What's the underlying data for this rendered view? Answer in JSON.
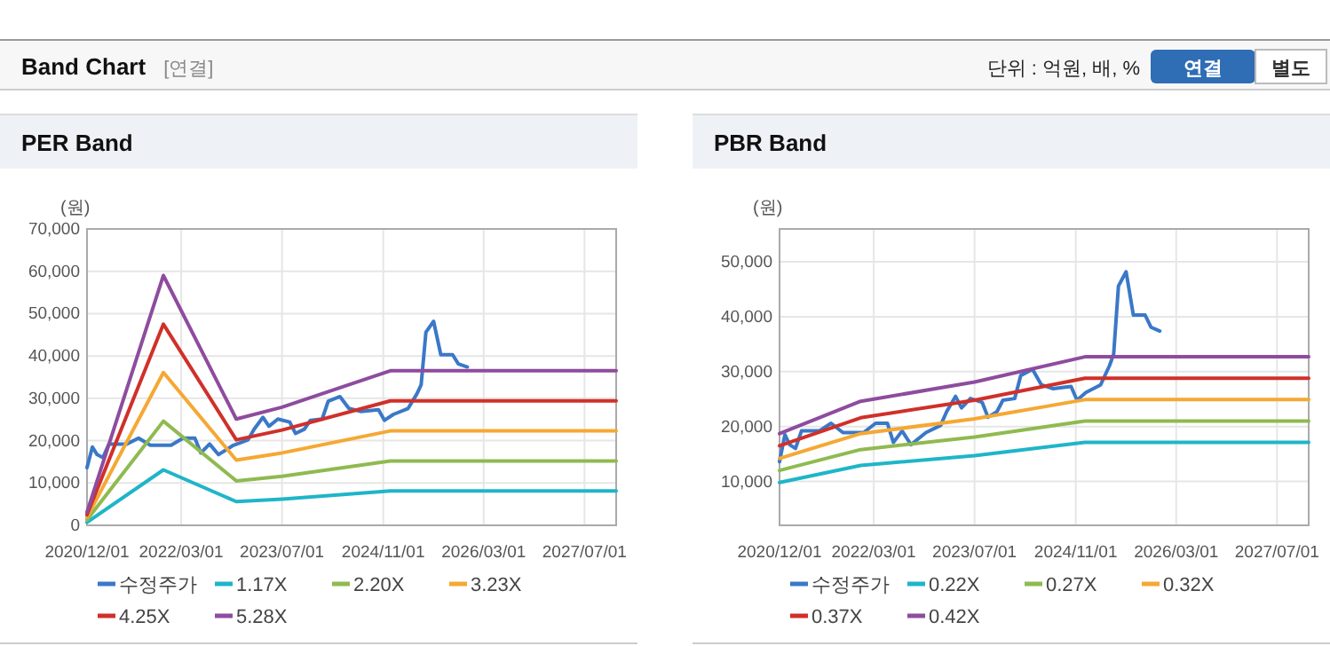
{
  "chart_data": [
    {
      "type": "other",
      "title": "Band Chart",
      "subtitle": "[연결]",
      "annotations": [
        "단위 : 억원, 배, %",
        "연결",
        "별도"
      ]
    },
    {
      "type": "line",
      "title": "PER Band",
      "ylabel": "(원)",
      "grid": true,
      "legend": "bottom",
      "xlim": [
        "2020-12-01",
        "2027-12-01"
      ],
      "xticks": [
        {
          "value": "2020-12-01",
          "label": "2020/12/01"
        },
        {
          "value": "2022-03-01",
          "label": "2022/03/01"
        },
        {
          "value": "2023-07-01",
          "label": "2023/07/01"
        },
        {
          "value": "2024-11-01",
          "label": "2024/11/01"
        },
        {
          "value": "2026-03-01",
          "label": "2026/03/01"
        },
        {
          "value": "2027-07-01",
          "label": "2027/07/01"
        }
      ],
      "ylim": [
        0,
        70000
      ],
      "yticks": [
        {
          "value": 0,
          "label": "0"
        },
        {
          "value": 10000,
          "label": "10,000"
        },
        {
          "value": 20000,
          "label": "20,000"
        },
        {
          "value": 30000,
          "label": "30,000"
        },
        {
          "value": 40000,
          "label": "40,000"
        },
        {
          "value": 50000,
          "label": "50,000"
        },
        {
          "value": 60000,
          "label": "60,000"
        },
        {
          "value": 70000,
          "label": "70,000"
        }
      ],
      "series": [
        {
          "name": "수정주가",
          "color": "#3a78c8",
          "x": [
            "2020-12-01",
            "2020-12-27",
            "2021-01-19",
            "2021-02-16",
            "2021-03-17",
            "2021-06-11",
            "2021-08-07",
            "2021-10-03",
            "2022-01-11",
            "2022-03-10",
            "2022-05-06",
            "2022-06-04",
            "2022-07-16",
            "2022-08-28",
            "2022-11-08",
            "2023-01-18",
            "2023-02-16",
            "2023-03-31",
            "2023-04-29",
            "2023-06-11",
            "2023-08-07",
            "2023-09-04",
            "2023-10-17",
            "2023-11-15",
            "2024-01-11",
            "2024-02-09",
            "2024-04-06",
            "2024-05-19",
            "2024-07-15",
            "2024-10-09",
            "2024-11-07",
            "2024-12-20",
            "2025-03-01",
            "2025-04-13",
            "2025-05-03",
            "2025-05-26",
            "2025-07-02",
            "2025-08-06",
            "2025-10-02",
            "2025-10-30",
            "2025-12-12"
          ],
          "values": [
            13600,
            18500,
            16700,
            16000,
            19200,
            19200,
            20600,
            18900,
            18900,
            20600,
            20600,
            17100,
            19200,
            16700,
            18900,
            20200,
            22700,
            25500,
            23400,
            25100,
            24400,
            21700,
            22700,
            24800,
            25100,
            29300,
            30400,
            27600,
            26900,
            27300,
            24800,
            26200,
            27600,
            31100,
            33200,
            45600,
            48200,
            40300,
            40300,
            38100,
            37400
          ]
        },
        {
          "name": "1.17X",
          "color": "#1fb5c8",
          "x": [
            "2020-12-01",
            "2021-12-05",
            "2022-11-22",
            "2023-07-01",
            "2024-12-05",
            "2027-12-01"
          ],
          "values": [
            700,
            13100,
            5600,
            6200,
            8100,
            8100
          ]
        },
        {
          "name": "2.20X",
          "color": "#8fba50",
          "x": [
            "2020-12-01",
            "2021-12-05",
            "2022-11-22",
            "2023-07-01",
            "2024-12-05",
            "2027-12-01"
          ],
          "values": [
            1300,
            24600,
            10500,
            11600,
            15200,
            15200
          ]
        },
        {
          "name": "3.23X",
          "color": "#f5a833",
          "x": [
            "2020-12-01",
            "2021-12-05",
            "2022-11-22",
            "2023-07-01",
            "2024-12-05",
            "2027-12-01"
          ],
          "values": [
            1900,
            36100,
            15400,
            17100,
            22300,
            22300
          ]
        },
        {
          "name": "4.25X",
          "color": "#d0302a",
          "x": [
            "2020-12-01",
            "2021-12-05",
            "2022-11-22",
            "2023-07-01",
            "2024-12-05",
            "2027-12-01"
          ],
          "values": [
            2500,
            47500,
            20200,
            22500,
            29400,
            29400
          ]
        },
        {
          "name": "5.28X",
          "color": "#8e4c9e",
          "x": [
            "2020-12-01",
            "2021-12-05",
            "2022-11-22",
            "2023-07-01",
            "2024-12-05",
            "2027-12-01"
          ],
          "values": [
            3100,
            59000,
            25100,
            27900,
            36500,
            36500
          ]
        }
      ]
    },
    {
      "type": "line",
      "title": "PBR Band",
      "ylabel": "(원)",
      "grid": true,
      "legend": "bottom",
      "xlim": [
        "2020-12-01",
        "2027-12-01"
      ],
      "xticks": [
        {
          "value": "2020-12-01",
          "label": "2020/12/01"
        },
        {
          "value": "2022-03-01",
          "label": "2022/03/01"
        },
        {
          "value": "2023-07-01",
          "label": "2023/07/01"
        },
        {
          "value": "2024-11-01",
          "label": "2024/11/01"
        },
        {
          "value": "2026-03-01",
          "label": "2026/03/01"
        },
        {
          "value": "2027-07-01",
          "label": "2027/07/01"
        }
      ],
      "ylim": [
        2000,
        56000
      ],
      "yticks": [
        {
          "value": 10000,
          "label": "10,000"
        },
        {
          "value": 20000,
          "label": "20,000"
        },
        {
          "value": 30000,
          "label": "30,000"
        },
        {
          "value": 40000,
          "label": "40,000"
        },
        {
          "value": 50000,
          "label": "50,000"
        }
      ],
      "series": [
        {
          "name": "수정주가",
          "color": "#3a78c8",
          "x": [
            "2020-12-01",
            "2020-12-27",
            "2021-01-19",
            "2021-02-16",
            "2021-03-17",
            "2021-06-11",
            "2021-08-07",
            "2021-10-03",
            "2022-01-11",
            "2022-03-10",
            "2022-05-06",
            "2022-06-04",
            "2022-07-16",
            "2022-08-28",
            "2022-11-08",
            "2023-01-18",
            "2023-02-16",
            "2023-03-31",
            "2023-04-29",
            "2023-06-11",
            "2023-08-07",
            "2023-09-04",
            "2023-10-17",
            "2023-11-15",
            "2024-01-11",
            "2024-02-09",
            "2024-04-06",
            "2024-05-19",
            "2024-07-15",
            "2024-10-09",
            "2024-11-07",
            "2024-12-20",
            "2025-03-01",
            "2025-04-13",
            "2025-05-03",
            "2025-05-26",
            "2025-07-02",
            "2025-08-06",
            "2025-10-02",
            "2025-10-30",
            "2025-12-12"
          ],
          "values": [
            13600,
            18500,
            16700,
            16000,
            19200,
            19200,
            20600,
            18900,
            18900,
            20600,
            20600,
            17100,
            19200,
            16700,
            18900,
            20200,
            22700,
            25500,
            23400,
            25100,
            24400,
            21700,
            22700,
            24800,
            25100,
            29300,
            30400,
            27600,
            26900,
            27300,
            24800,
            26200,
            27600,
            31100,
            33200,
            45600,
            48200,
            40300,
            40300,
            38100,
            37400
          ]
        },
        {
          "name": "0.22X",
          "color": "#1fb5c8",
          "x": [
            "2020-12-01",
            "2021-12-28",
            "2023-07-01",
            "2024-12-15",
            "2027-12-01"
          ],
          "values": [
            9800,
            12900,
            14700,
            17100,
            17100
          ]
        },
        {
          "name": "0.27X",
          "color": "#8fba50",
          "x": [
            "2020-12-01",
            "2021-12-28",
            "2023-07-01",
            "2024-12-15",
            "2027-12-01"
          ],
          "values": [
            12000,
            15800,
            18100,
            21000,
            21000
          ]
        },
        {
          "name": "0.32X",
          "color": "#f5a833",
          "x": [
            "2020-12-01",
            "2021-12-28",
            "2023-07-01",
            "2024-12-15",
            "2027-12-01"
          ],
          "values": [
            14200,
            18700,
            21400,
            24900,
            24900
          ]
        },
        {
          "name": "0.37X",
          "color": "#d0302a",
          "x": [
            "2020-12-01",
            "2021-12-28",
            "2023-07-01",
            "2024-12-15",
            "2027-12-01"
          ],
          "values": [
            16500,
            21600,
            24800,
            28800,
            28800
          ]
        },
        {
          "name": "0.42X",
          "color": "#8e4c9e",
          "x": [
            "2020-12-01",
            "2021-12-28",
            "2023-07-01",
            "2024-12-15",
            "2027-12-01"
          ],
          "values": [
            18700,
            24600,
            28100,
            32700,
            32700
          ]
        }
      ]
    }
  ]
}
